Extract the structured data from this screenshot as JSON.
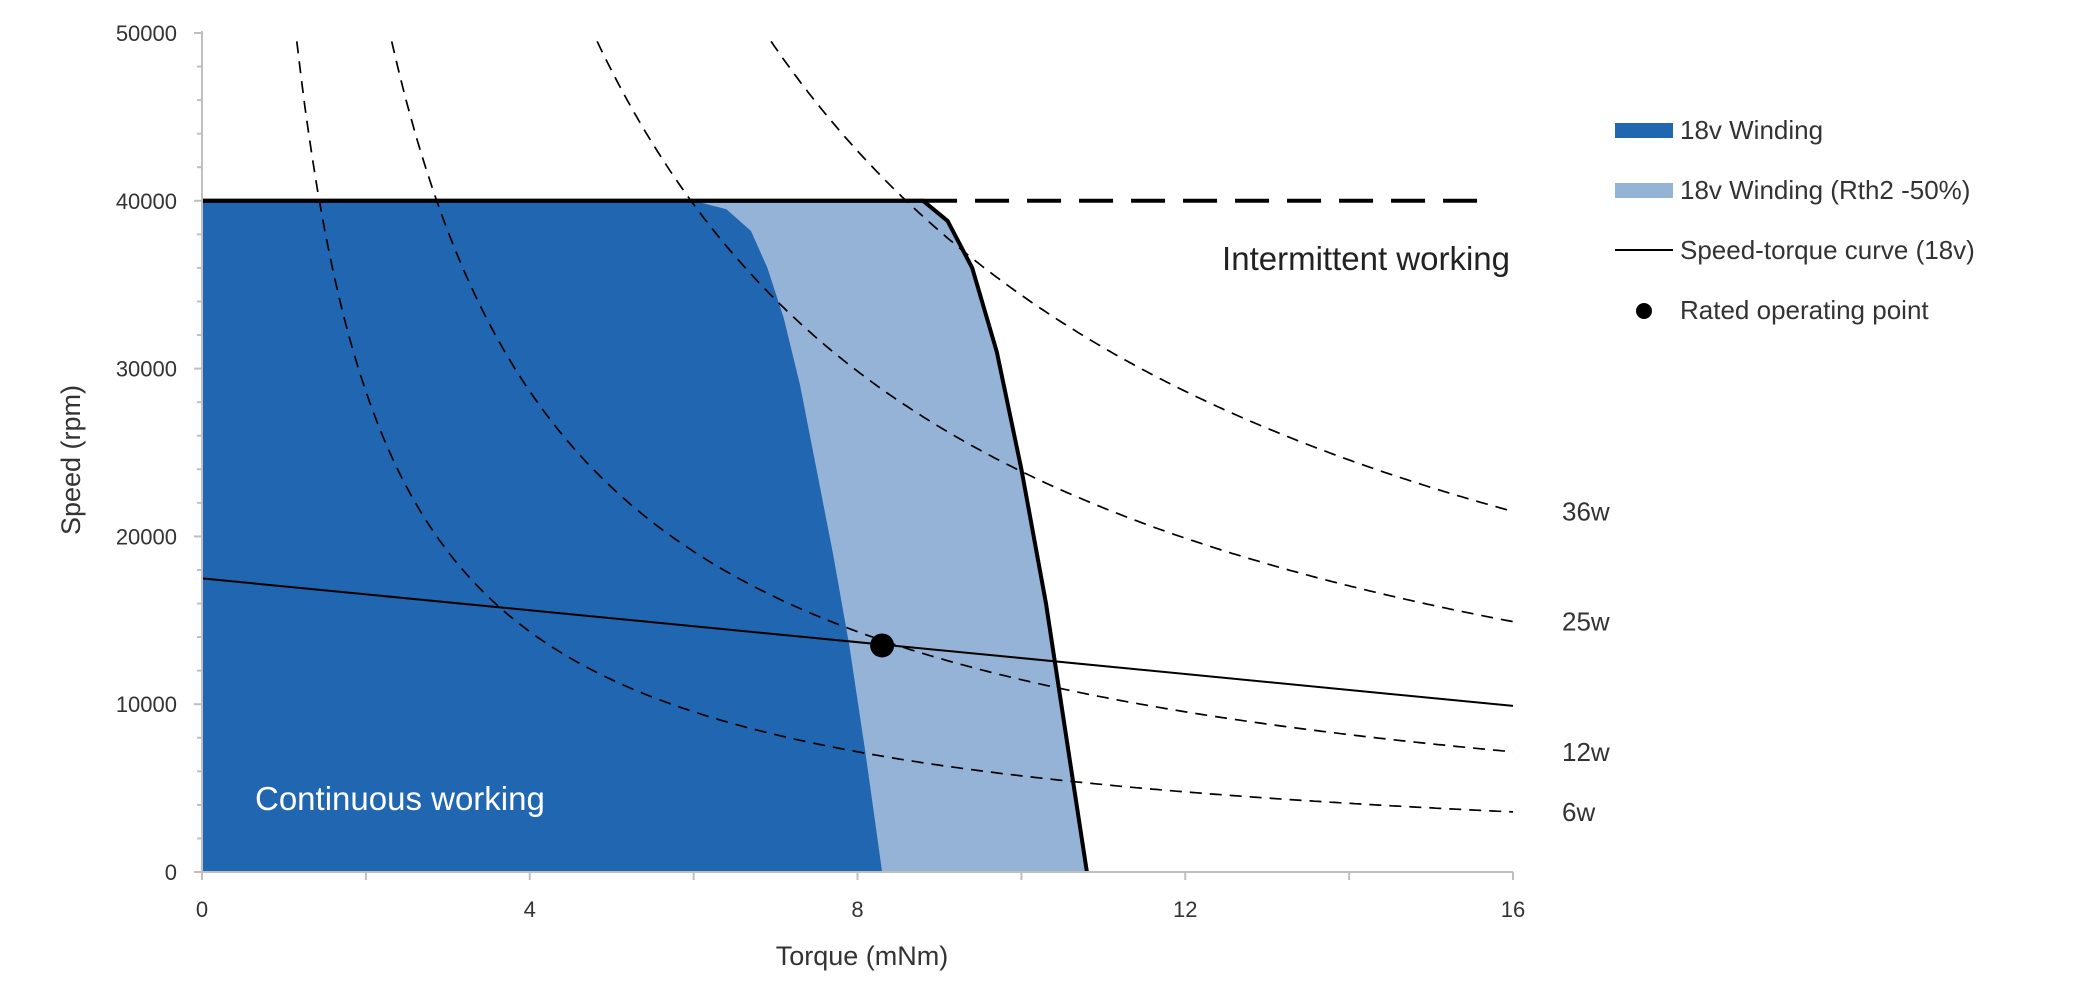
{
  "chart_data": {
    "type": "area",
    "xlabel": "Torque  (mNm)",
    "ylabel": "Speed (rpm)",
    "xlim": [
      0,
      16
    ],
    "ylim": [
      0,
      50000
    ],
    "x_ticks": [
      0,
      4,
      8,
      12,
      16
    ],
    "y_ticks": [
      0,
      10000,
      20000,
      30000,
      40000,
      50000
    ],
    "grid": false,
    "legend_position": "right",
    "colors": {
      "dark_region": "#2166B0",
      "light_region": "#95B2D7",
      "curve": "#000000"
    },
    "series": [
      {
        "name": "18v Winding",
        "kind": "area",
        "points": [
          [
            0,
            0
          ],
          [
            0,
            40000
          ],
          [
            6.0,
            40000
          ],
          [
            6.4,
            39500
          ],
          [
            6.7,
            38200
          ],
          [
            6.9,
            36000
          ],
          [
            7.1,
            33000
          ],
          [
            7.3,
            29000
          ],
          [
            7.5,
            24000
          ],
          [
            7.7,
            19000
          ],
          [
            7.9,
            13500
          ],
          [
            8.1,
            7000
          ],
          [
            8.3,
            0
          ]
        ]
      },
      {
        "name": "18v Winding (Rth2 -50%)",
        "kind": "area",
        "points": [
          [
            0,
            0
          ],
          [
            0,
            40000
          ],
          [
            8.8,
            40000
          ],
          [
            9.1,
            38800
          ],
          [
            9.4,
            36000
          ],
          [
            9.7,
            31000
          ],
          [
            10.0,
            24000
          ],
          [
            10.3,
            16000
          ],
          [
            10.55,
            8000
          ],
          [
            10.8,
            0
          ]
        ]
      },
      {
        "name": "Speed-torque curve (18v)",
        "kind": "line",
        "points": [
          [
            0,
            17500
          ],
          [
            16,
            9900
          ]
        ]
      },
      {
        "name": "Rated operating point",
        "kind": "point",
        "points": [
          [
            8.3,
            13500
          ]
        ]
      }
    ],
    "limit_line": {
      "y": 40000,
      "x_from": 0,
      "x_to": 16,
      "dashed_from": 8.8
    },
    "iso_power_curves": [
      {
        "label": "6w",
        "watts": 6
      },
      {
        "label": "12w",
        "watts": 12
      },
      {
        "label": "25w",
        "watts": 25
      },
      {
        "label": "36w",
        "watts": 36
      }
    ],
    "annotations": {
      "intermittent": "Intermittent working",
      "continuous": "Continuous working"
    }
  }
}
